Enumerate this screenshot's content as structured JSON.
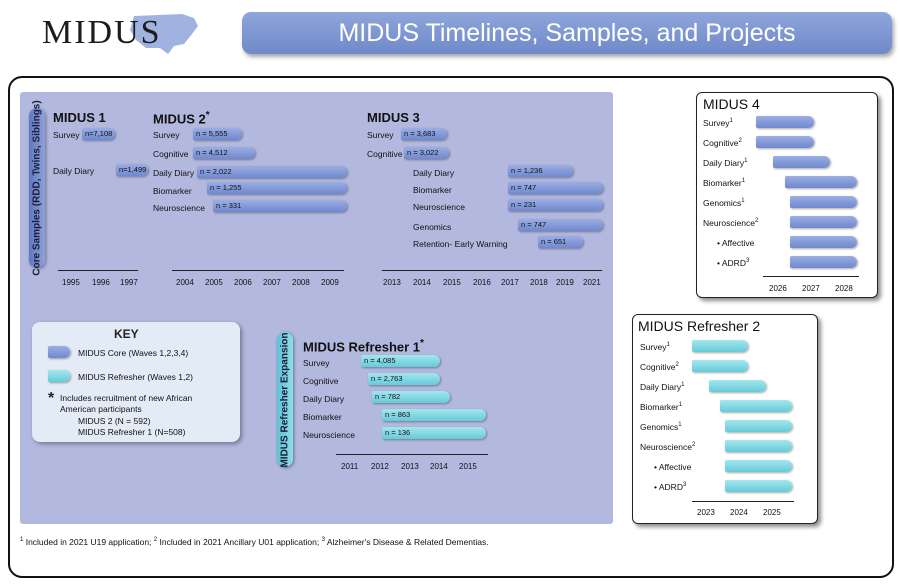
{
  "header": {
    "logo_text": "MIDUS",
    "title": "MIDUS Timelines, Samples, and Projects"
  },
  "core": {
    "side_label": "Core Samples (RDD, Twins, Siblings)",
    "midus1": {
      "title": "MIDUS 1",
      "rows": [
        {
          "label": "Survey",
          "n": "n=7,108"
        },
        {
          "label": "Daily Diary",
          "n": "n=1,499"
        }
      ],
      "ticks": [
        "1995",
        "1996",
        "1997"
      ]
    },
    "midus2": {
      "title": "MIDUS 2",
      "star": "*",
      "rows": [
        {
          "label": "Survey",
          "n": "n = 5,555"
        },
        {
          "label": "Cognitive",
          "n": "n = 4,512"
        },
        {
          "label": "Daily Diary",
          "n": "n = 2,022"
        },
        {
          "label": "Biomarker",
          "n": "n = 1,255"
        },
        {
          "label": "Neuroscience",
          "n": "n = 331"
        }
      ],
      "ticks": [
        "2004",
        "2005",
        "2006",
        "2007",
        "2008",
        "2009"
      ]
    },
    "midus3": {
      "title": "MIDUS 3",
      "rows": [
        {
          "label": "Survey",
          "n": "n = 3,683"
        },
        {
          "label": "Cognitive",
          "n": "n = 3,022"
        },
        {
          "label": "Daily Diary",
          "n": "n = 1,236"
        },
        {
          "label": "Biomarker",
          "n": "n = 747"
        },
        {
          "label": "Neuroscience",
          "n": "n = 231"
        },
        {
          "label": "Genomics",
          "n": "n = 747"
        },
        {
          "label": "Retention- Early Warning",
          "n": "n = 651"
        }
      ],
      "ticks": [
        "2013",
        "2014",
        "2015",
        "2016",
        "2017",
        "2018",
        "2019",
        "2021"
      ]
    }
  },
  "refresher1": {
    "title": "MIDUS Refresher 1",
    "star": "*",
    "side_label": "MIDUS Refresher Expansion",
    "rows": [
      {
        "label": "Survey",
        "n": "n = 4,085"
      },
      {
        "label": "Cognitive",
        "n": "n = 2,763"
      },
      {
        "label": "Daily Diary",
        "n": "n = 782"
      },
      {
        "label": "Biomarker",
        "n": "n = 863"
      },
      {
        "label": "Neuroscience",
        "n": "n = 136"
      }
    ],
    "ticks": [
      "2011",
      "2012",
      "2013",
      "2014",
      "2015"
    ]
  },
  "midus4": {
    "title": "MIDUS 4",
    "rows": [
      {
        "label": "Survey",
        "sup": "1"
      },
      {
        "label": "Cognitive",
        "sup": "2"
      },
      {
        "label": "Daily Diary",
        "sup": "1"
      },
      {
        "label": "Biomarker",
        "sup": "1"
      },
      {
        "label": "Genomics",
        "sup": "1"
      },
      {
        "label": "Neuroscience",
        "sup": "2"
      },
      {
        "label": "• Affective",
        "sup": ""
      },
      {
        "label": "• ADRD",
        "sup": "3"
      }
    ],
    "ticks": [
      "2026",
      "2027",
      "2028"
    ]
  },
  "refresher2": {
    "title": "MIDUS Refresher 2",
    "rows": [
      {
        "label": "Survey",
        "sup": "1"
      },
      {
        "label": "Cognitive",
        "sup": "2"
      },
      {
        "label": "Daily Diary",
        "sup": "1"
      },
      {
        "label": "Biomarker",
        "sup": "1"
      },
      {
        "label": "Genomics",
        "sup": "1"
      },
      {
        "label": "Neuroscience",
        "sup": "2"
      },
      {
        "label": "• Affective",
        "sup": ""
      },
      {
        "label": "• ADRD",
        "sup": "3"
      }
    ],
    "ticks": [
      "2023",
      "2024",
      "2025"
    ]
  },
  "key": {
    "title": "KEY",
    "core_label": "MIDUS Core (Waves 1,2,3,4)",
    "refresher_label": "MIDUS Refresher (Waves 1,2)",
    "star": "*",
    "note_line1": "Includes recruitment of new African",
    "note_line2": "American participants",
    "note_line3": "MIDUS 2 (N = 592)",
    "note_line4": "MIDUS Refresher 1 (N=508)"
  },
  "footnote": {
    "n1": "1",
    "t1": " Included in 2021 U19 application; ",
    "n2": "2",
    "t2": " Included in 2021 Ancillary U01 application; ",
    "n3": "3",
    "t3": " Alzheimer's Disease & Related Dementias."
  },
  "colors": {
    "core_bar": "#7f97d6",
    "refresher_bar": "#7fd5e0",
    "core_panel": "#b3b8de",
    "banner": "#7d95d1"
  }
}
